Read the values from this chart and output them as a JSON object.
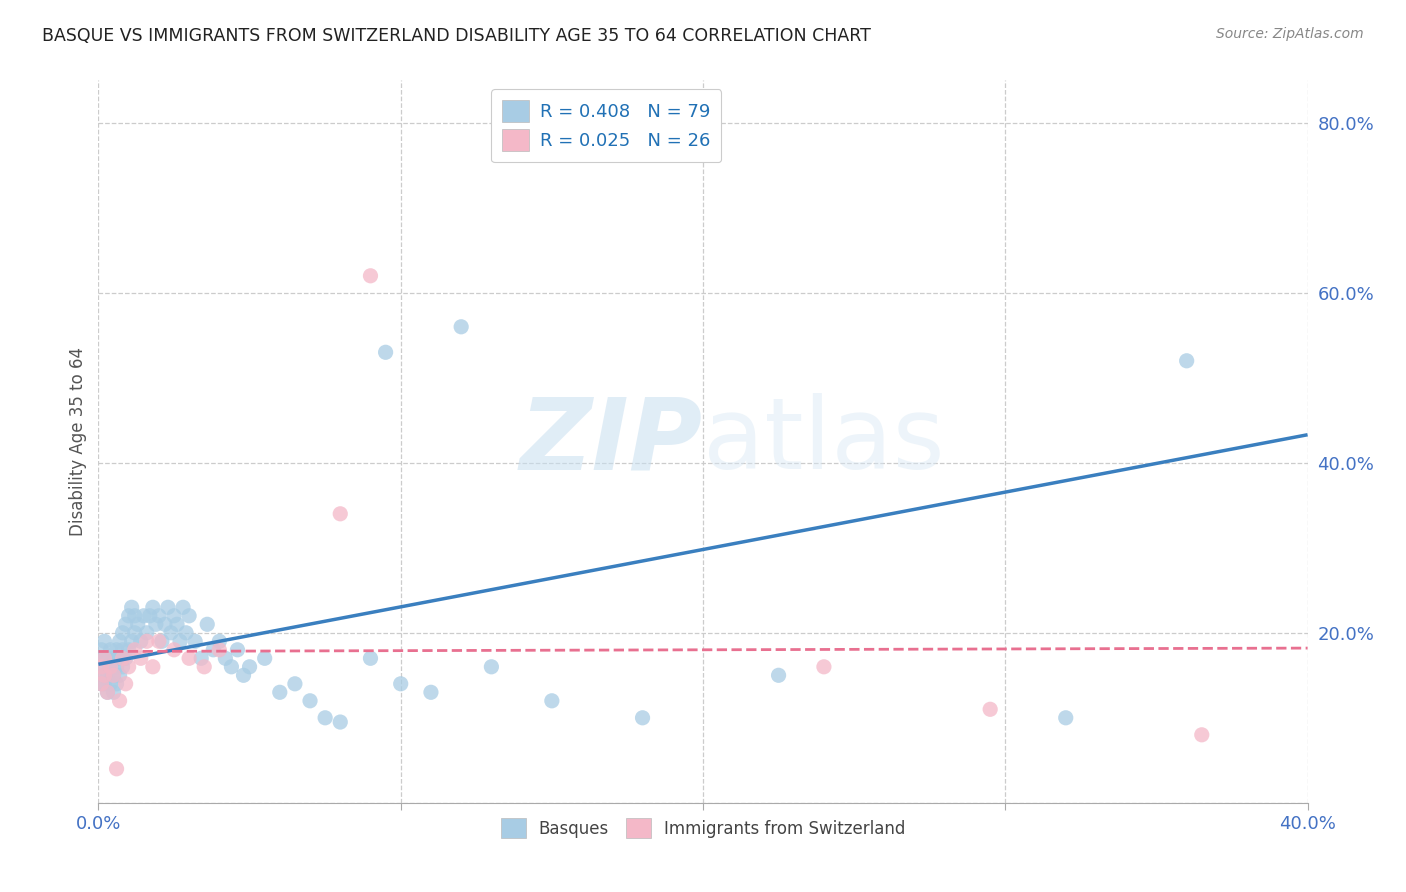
{
  "title": "BASQUE VS IMMIGRANTS FROM SWITZERLAND DISABILITY AGE 35 TO 64 CORRELATION CHART",
  "source": "Source: ZipAtlas.com",
  "ylabel": "Disability Age 35 to 64",
  "xlim": [
    0.0,
    0.4
  ],
  "ylim": [
    0.0,
    0.85
  ],
  "xticks": [
    0.0,
    0.1,
    0.2,
    0.3,
    0.4
  ],
  "yticks": [
    0.0,
    0.2,
    0.4,
    0.6,
    0.8
  ],
  "xticklabels": [
    "0.0%",
    "",
    "",
    "",
    "40.0%"
  ],
  "yticklabels": [
    "",
    "20.0%",
    "40.0%",
    "60.0%",
    "80.0%"
  ],
  "blue_color": "#a8cce4",
  "pink_color": "#f4b8c8",
  "blue_line_color": "#3a7fbf",
  "pink_line_color": "#e87090",
  "legend_R1": "R = 0.408",
  "legend_N1": "N = 79",
  "legend_R2": "R = 0.025",
  "legend_N2": "N = 26",
  "watermark_zip": "ZIP",
  "watermark_atlas": "atlas",
  "blue_line_x0": 0.0,
  "blue_line_y0": 0.163,
  "blue_line_x1": 0.4,
  "blue_line_y1": 0.433,
  "pink_line_x0": 0.0,
  "pink_line_y0": 0.178,
  "pink_line_x1": 0.4,
  "pink_line_y1": 0.182,
  "basque_x": [
    0.001,
    0.001,
    0.001,
    0.001,
    0.002,
    0.002,
    0.002,
    0.002,
    0.003,
    0.003,
    0.003,
    0.004,
    0.004,
    0.004,
    0.005,
    0.005,
    0.005,
    0.006,
    0.006,
    0.006,
    0.007,
    0.007,
    0.007,
    0.008,
    0.008,
    0.008,
    0.009,
    0.009,
    0.01,
    0.01,
    0.011,
    0.011,
    0.012,
    0.012,
    0.013,
    0.014,
    0.015,
    0.016,
    0.017,
    0.018,
    0.019,
    0.02,
    0.021,
    0.022,
    0.023,
    0.024,
    0.025,
    0.026,
    0.027,
    0.028,
    0.029,
    0.03,
    0.032,
    0.034,
    0.036,
    0.038,
    0.04,
    0.042,
    0.044,
    0.046,
    0.048,
    0.05,
    0.055,
    0.06,
    0.065,
    0.07,
    0.075,
    0.08,
    0.09,
    0.1,
    0.11,
    0.13,
    0.15,
    0.18,
    0.225,
    0.32,
    0.36,
    0.12,
    0.095
  ],
  "basque_y": [
    0.14,
    0.16,
    0.17,
    0.18,
    0.14,
    0.15,
    0.17,
    0.19,
    0.13,
    0.15,
    0.17,
    0.14,
    0.16,
    0.18,
    0.13,
    0.15,
    0.17,
    0.14,
    0.16,
    0.18,
    0.15,
    0.17,
    0.19,
    0.16,
    0.18,
    0.2,
    0.17,
    0.21,
    0.18,
    0.22,
    0.19,
    0.23,
    0.2,
    0.22,
    0.21,
    0.19,
    0.22,
    0.2,
    0.22,
    0.23,
    0.21,
    0.22,
    0.19,
    0.21,
    0.23,
    0.2,
    0.22,
    0.21,
    0.19,
    0.23,
    0.2,
    0.22,
    0.19,
    0.17,
    0.21,
    0.18,
    0.19,
    0.17,
    0.16,
    0.18,
    0.15,
    0.16,
    0.17,
    0.13,
    0.14,
    0.12,
    0.1,
    0.095,
    0.17,
    0.14,
    0.13,
    0.16,
    0.12,
    0.1,
    0.15,
    0.1,
    0.52,
    0.56,
    0.53
  ],
  "swiss_x": [
    0.001,
    0.001,
    0.002,
    0.002,
    0.003,
    0.004,
    0.005,
    0.006,
    0.007,
    0.008,
    0.009,
    0.01,
    0.012,
    0.014,
    0.016,
    0.018,
    0.02,
    0.025,
    0.03,
    0.035,
    0.04,
    0.08,
    0.09,
    0.24,
    0.295,
    0.365
  ],
  "swiss_y": [
    0.14,
    0.16,
    0.15,
    0.17,
    0.13,
    0.16,
    0.15,
    0.04,
    0.12,
    0.17,
    0.14,
    0.16,
    0.18,
    0.17,
    0.19,
    0.16,
    0.19,
    0.18,
    0.17,
    0.16,
    0.18,
    0.34,
    0.62,
    0.16,
    0.11,
    0.08
  ]
}
